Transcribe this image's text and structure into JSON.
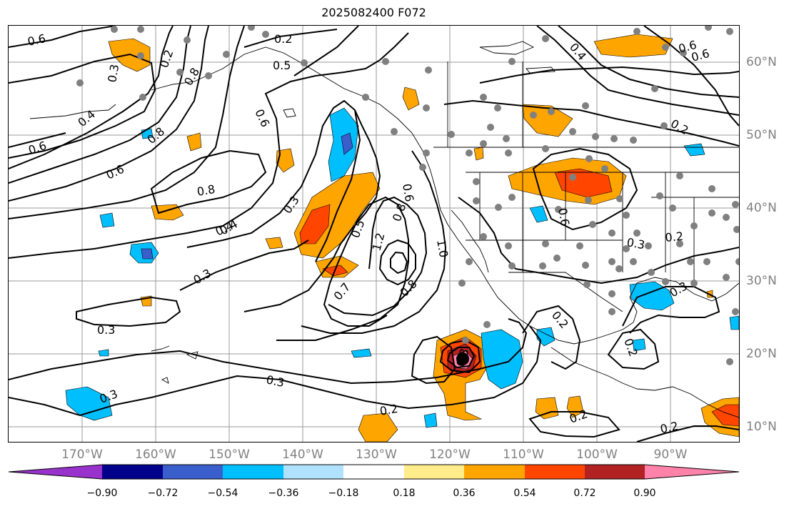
{
  "title": "2025082400 F072",
  "lon_labels": [
    "170°W",
    "160°W",
    "150°W",
    "140°W",
    "130°W",
    "120°W",
    "110°W",
    "100°W",
    "90°W"
  ],
  "lat_labels": [
    "60°N",
    "50°N",
    "40°N",
    "30°N",
    "20°N",
    "10°N"
  ],
  "colorbar": {
    "colors": [
      "#9932cc",
      "#00008b",
      "#3a5fcd",
      "#00bfff",
      "#b0e2ff",
      "#ffffff",
      "#ffec8b",
      "#ffa500",
      "#ff4500",
      "#b22222",
      "#ff82ab"
    ],
    "tick_labels": [
      "−0.90",
      "−0.72",
      "−0.54",
      "−0.36",
      "−0.18",
      "0.18",
      "0.36",
      "0.54",
      "0.72",
      "0.90"
    ]
  },
  "contour_labels": [
    "0.6",
    "0.2",
    "0.5",
    "0.4",
    "0.6",
    "0.8",
    "0.2",
    "0.6",
    "0.3",
    "0.8",
    "0.4",
    "0.8",
    "0.6",
    "0.6",
    "0.6",
    "0.6",
    "0.3",
    "0.4",
    "0.5",
    "0.3",
    "1.2",
    "1.0",
    "0.8",
    "0.7",
    "0.8",
    "0.3",
    "0.3",
    "0.3",
    "0.3",
    "0.2",
    "0.2",
    "0.2",
    "0.3",
    "0.3",
    "0.2",
    "0.4",
    "0.6",
    "0.2",
    "0.2",
    "0.2"
  ],
  "colors": {
    "contour": "#000000",
    "station": "#808080",
    "axis_label": "#808080",
    "grid": "#9a9a9a"
  }
}
